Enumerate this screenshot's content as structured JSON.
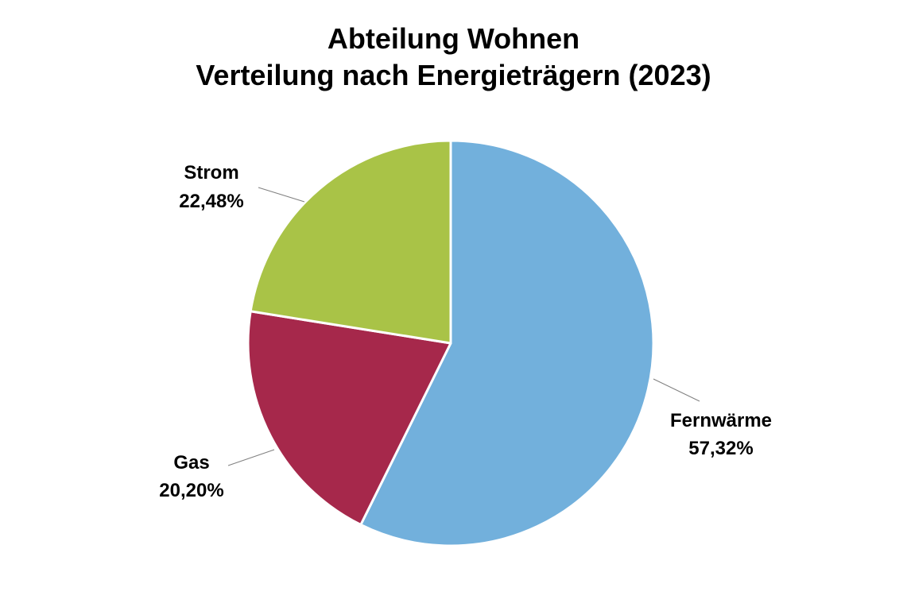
{
  "chart_data": {
    "type": "pie",
    "title_lines": [
      "Abteilung Wohnen",
      "Verteilung nach Energieträgern (2023)"
    ],
    "slices": [
      {
        "label": "Fernwärme",
        "value": 57.32,
        "value_label": "57,32%",
        "color": "#72b0dc"
      },
      {
        "label": "Gas",
        "value": 20.2,
        "value_label": "20,20%",
        "color": "#a6284b"
      },
      {
        "label": "Strom",
        "value": 22.48,
        "value_label": "22,48%",
        "color": "#a9c347"
      }
    ],
    "start": "12 o'clock",
    "direction": "clockwise",
    "legend": "none",
    "data_labels": "outside with leader lines"
  }
}
